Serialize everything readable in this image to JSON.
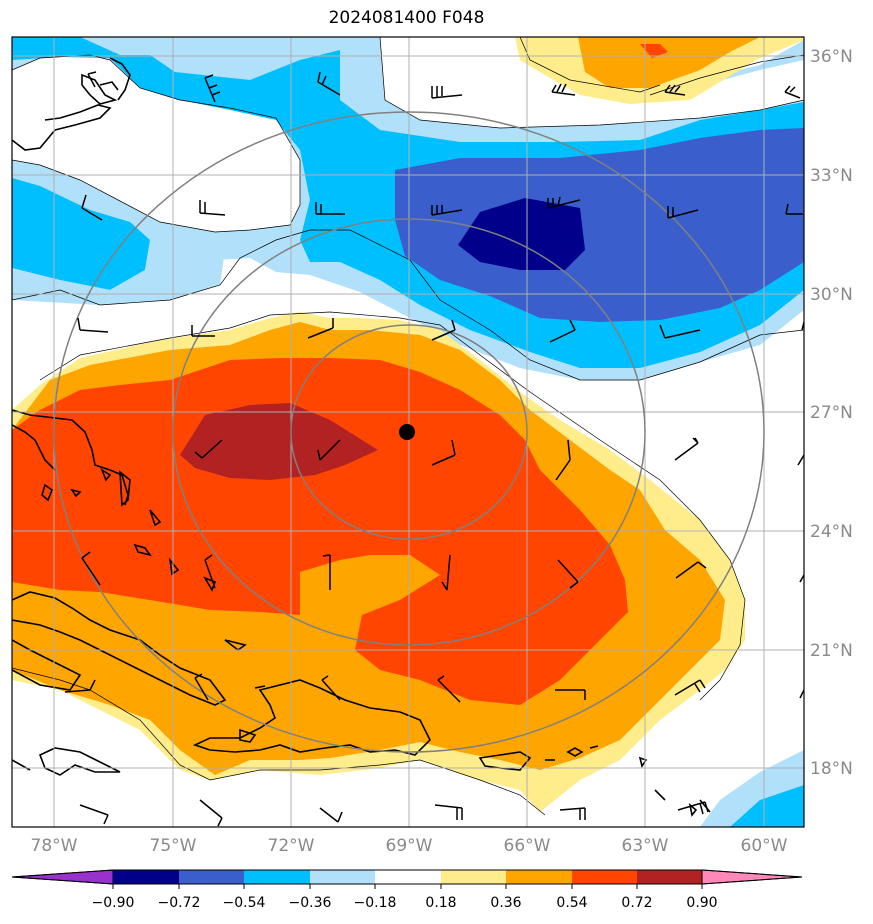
{
  "title": "2024081400 F048",
  "map": {
    "projection": "PlateCarree",
    "lon_range": [
      -79,
      -59.5
    ],
    "lat_range": [
      16.5,
      36.2
    ],
    "lat_labels": [
      "18°N",
      "21°N",
      "24°N",
      "27°N",
      "30°N",
      "33°N",
      "36°N"
    ],
    "lon_labels": [
      "78°W",
      "75°W",
      "72°W",
      "69°W",
      "66°W",
      "63°W",
      "60°W"
    ],
    "storm_center": {
      "lon": -69.0,
      "lat": 26.5
    },
    "range_rings_deg": [
      3,
      6,
      9
    ]
  },
  "colorbar": {
    "ticks": [
      "−0.90",
      "−0.72",
      "−0.54",
      "−0.36",
      "−0.18",
      "0.18",
      "0.36",
      "0.54",
      "0.72",
      "0.90"
    ],
    "colors": [
      "#9932cc",
      "#00008b",
      "#3a5fcd",
      "#00bfff",
      "#b0e0fa",
      "#ffffff",
      "#ffec8b",
      "#ffa500",
      "#ff4500",
      "#b22222",
      "#ff88bb"
    ],
    "extend": "both"
  }
}
